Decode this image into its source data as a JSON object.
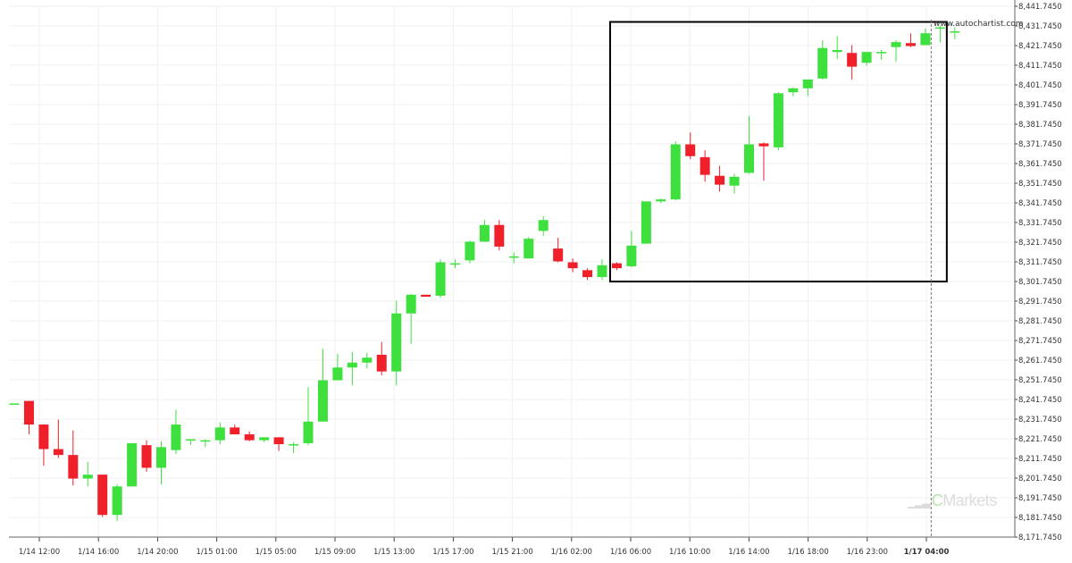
{
  "chart_data": {
    "type": "candlestick",
    "watermark_site": "www.autochartist.com",
    "watermark_brand": "Markets",
    "watermark_brand_prefix": "C",
    "y_axis": {
      "ticks": [
        "8,441.7450",
        "8,431.7450",
        "8,421.7450",
        "8,411.7450",
        "8,401.7450",
        "8,391.7450",
        "8,381.7450",
        "8,371.7450",
        "8,361.7450",
        "8,351.7450",
        "8,341.7450",
        "8,331.7450",
        "8,321.7450",
        "8,311.7450",
        "8,301.7450",
        "8,291.7450",
        "8,281.7450",
        "8,271.7450",
        "8,261.7450",
        "8,251.7450",
        "8,241.7450",
        "8,231.7450",
        "8,221.7450",
        "8,211.7450",
        "8,201.7450",
        "8,191.7450",
        "8,181.7450",
        "8,171.7450"
      ],
      "range": [
        8171.745,
        8441.745
      ]
    },
    "x_axis": {
      "ticks": [
        "1/14 12:00",
        "1/14 16:00",
        "1/14 20:00",
        "1/15 01:00",
        "1/15 05:00",
        "1/15 09:00",
        "1/15 13:00",
        "1/15 17:00",
        "1/15 21:00",
        "1/16 02:00",
        "1/16 06:00",
        "1/16 10:00",
        "1/16 14:00",
        "1/16 18:00",
        "1/16 23:00",
        "1/17 04:00"
      ],
      "highlighted_tick": "1/17 04:00"
    },
    "colors": {
      "up": "#3ee03e",
      "down": "#f0202a",
      "box": "#000000",
      "grid": "#f0f0f0"
    },
    "candles": [
      [
        8239.7,
        8239.7,
        8239.7,
        8239.7
      ],
      [
        8241.0,
        8241.0,
        8224.0,
        8229.0
      ],
      [
        8229.0,
        8229.0,
        8208.0,
        8216.5
      ],
      [
        8216.5,
        8231.5,
        8212.0,
        8213.5
      ],
      [
        8213.5,
        8226.0,
        8198.0,
        8201.5
      ],
      [
        8201.5,
        8210.0,
        8197.5,
        8203.5
      ],
      [
        8203.5,
        8203.5,
        8182.0,
        8183.0
      ],
      [
        8183.0,
        8198.5,
        8180.0,
        8197.5
      ],
      [
        8197.5,
        8219.5,
        8197.5,
        8219.5
      ],
      [
        8218.5,
        8221.0,
        8205.0,
        8207.0
      ],
      [
        8207.0,
        8220.5,
        8198.5,
        8217.5
      ],
      [
        8216.0,
        8236.5,
        8214.0,
        8229.0
      ],
      [
        8221.5,
        8221.5,
        8218.5,
        8221.5
      ],
      [
        8221.0,
        8221.5,
        8217.5,
        8221.0
      ],
      [
        8221.0,
        8230.0,
        8219.0,
        8227.5
      ],
      [
        8227.5,
        8229.0,
        8224.0,
        8224.0
      ],
      [
        8224.0,
        8225.5,
        8220.5,
        8221.0
      ],
      [
        8221.0,
        8222.5,
        8220.0,
        8222.5
      ],
      [
        8222.5,
        8222.5,
        8215.5,
        8219.0
      ],
      [
        8218.5,
        8220.0,
        8214.5,
        8219.0
      ],
      [
        8219.5,
        8248.0,
        8218.5,
        8230.5
      ],
      [
        8230.5,
        8267.5,
        8230.5,
        8251.5
      ],
      [
        8251.5,
        8265.0,
        8251.5,
        8258.0
      ],
      [
        8258.0,
        8266.0,
        8249.0,
        8260.5
      ],
      [
        8260.5,
        8265.5,
        8257.5,
        8263.0
      ],
      [
        8264.5,
        8271.0,
        8254.0,
        8256.0
      ],
      [
        8256.0,
        8292.0,
        8249.0,
        8285.5
      ],
      [
        8285.5,
        8295.5,
        8270.0,
        8295.0
      ],
      [
        8295.0,
        8295.0,
        8294.0,
        8294.0
      ],
      [
        8294.5,
        8313.0,
        8293.5,
        8311.5
      ],
      [
        8310.5,
        8313.0,
        8308.5,
        8311.0
      ],
      [
        8312.5,
        8322.5,
        8311.0,
        8322.0
      ],
      [
        8322.0,
        8333.0,
        8322.0,
        8330.5
      ],
      [
        8330.5,
        8333.0,
        8317.5,
        8319.5
      ],
      [
        8314.5,
        8316.5,
        8311.0,
        8314.5
      ],
      [
        8313.5,
        8324.5,
        8313.5,
        8323.5
      ],
      [
        8327.5,
        8335.0,
        8325.0,
        8333.0
      ],
      [
        8318.5,
        8324.0,
        8311.5,
        8312.0
      ],
      [
        8311.5,
        8313.5,
        8306.5,
        8308.5
      ],
      [
        8307.5,
        8308.5,
        8302.5,
        8304.0
      ],
      [
        8304.0,
        8313.0,
        8302.5,
        8310.0
      ],
      [
        8311.0,
        8311.5,
        8307.5,
        8308.5
      ],
      [
        8309.5,
        8327.5,
        8309.0,
        8320.0
      ],
      [
        8321.0,
        8341.5,
        8321.0,
        8342.5
      ],
      [
        8342.5,
        8344.0,
        8341.5,
        8343.5
      ],
      [
        8343.5,
        8373.0,
        8343.0,
        8371.5
      ],
      [
        8371.5,
        8377.5,
        8364.0,
        8365.5
      ],
      [
        8365.0,
        8368.5,
        8352.5,
        8356.0
      ],
      [
        8355.5,
        8360.5,
        8347.5,
        8351.0
      ],
      [
        8350.5,
        8356.5,
        8346.5,
        8355.0
      ],
      [
        8357.0,
        8386.0,
        8356.5,
        8371.5
      ],
      [
        8372.0,
        8372.5,
        8353.0,
        8370.5
      ],
      [
        8370.0,
        8398.0,
        8368.5,
        8397.5
      ],
      [
        8398.0,
        8400.5,
        8396.0,
        8400.0
      ],
      [
        8400.0,
        8404.0,
        8396.0,
        8404.5
      ],
      [
        8405.0,
        8424.5,
        8404.5,
        8420.5
      ],
      [
        8418.5,
        8426.5,
        8415.0,
        8419.5
      ],
      [
        8418.0,
        8422.0,
        8404.5,
        8411.0
      ],
      [
        8413.0,
        8418.0,
        8411.5,
        8418.5
      ],
      [
        8418.5,
        8419.5,
        8414.5,
        8418.5
      ],
      [
        8421.0,
        8424.5,
        8413.5,
        8423.5
      ],
      [
        8423.0,
        8428.0,
        8421.0,
        8421.5
      ],
      [
        8422.0,
        8430.5,
        8422.0,
        8428.0
      ],
      [
        8431.0,
        8432.0,
        8423.5,
        8431.0
      ],
      [
        8429.0,
        8431.0,
        8425.0,
        8429.0
      ]
    ],
    "box_range": {
      "from_index": 41,
      "to_index": 63,
      "low": 8304.0,
      "high": 8431.5
    },
    "current_index": 63
  }
}
